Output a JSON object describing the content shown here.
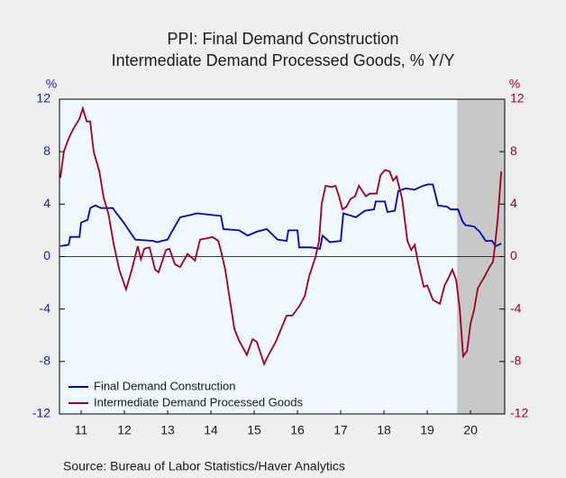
{
  "chart_data": {
    "type": "line",
    "title": "PPI: Final Demand Construction",
    "subtitle": "Intermediate Demand Processed Goods, % Y/Y",
    "ylabel": "%",
    "y2label": "%",
    "source": "Source:  Bureau of Labor Statistics/Haver Analytics",
    "xlim": [
      2011,
      2021.29
    ],
    "xticks": [
      {
        "value": 2011.5,
        "label": "11"
      },
      {
        "value": 2012.5,
        "label": "12"
      },
      {
        "value": 2013.5,
        "label": "13"
      },
      {
        "value": 2014.5,
        "label": "14"
      },
      {
        "value": 2015.5,
        "label": "15"
      },
      {
        "value": 2016.5,
        "label": "16"
      },
      {
        "value": 2017.5,
        "label": "17"
      },
      {
        "value": 2018.5,
        "label": "18"
      },
      {
        "value": 2019.5,
        "label": "19"
      },
      {
        "value": 2020.5,
        "label": "20"
      }
    ],
    "ylim": [
      -12,
      12
    ],
    "yticks": [
      12,
      8,
      4,
      0,
      -4,
      -8,
      -12
    ],
    "y2lim": [
      -12,
      12
    ],
    "y2ticks": [
      12,
      8,
      4,
      0,
      -4,
      -8,
      -12
    ],
    "hline": 0,
    "shaded_region": [
      2020.19,
      2021.29
    ],
    "legend": "lower left",
    "series": [
      {
        "name": "Final Demand Construction",
        "color": "#0000c0",
        "x": [
          2011.02,
          2011.21,
          2011.25,
          2011.46,
          2011.5,
          2011.65,
          2011.71,
          2011.83,
          2011.96,
          2012.23,
          2012.48,
          2012.75,
          2013.17,
          2013.25,
          2013.5,
          2013.58,
          2013.79,
          2014.06,
          2014.17,
          2014.46,
          2014.73,
          2014.79,
          2015.15,
          2015.35,
          2015.56,
          2015.79,
          2016.04,
          2016.25,
          2016.29,
          2016.5,
          2016.54,
          2016.81,
          2017.02,
          2017.08,
          2017.25,
          2017.5,
          2017.56,
          2017.85,
          2018.06,
          2018.27,
          2018.31,
          2018.52,
          2018.58,
          2018.75,
          2018.83,
          2019.0,
          2019.21,
          2019.33,
          2019.5,
          2019.63,
          2019.75,
          2019.96,
          2020.04,
          2020.21,
          2020.31,
          2020.38,
          2020.58,
          2020.71,
          2020.85,
          2021.0,
          2021.08,
          2021.15,
          2021.21
        ],
        "values": [
          0.8,
          0.9,
          1.5,
          1.5,
          2.6,
          2.8,
          3.7,
          3.9,
          3.7,
          3.7,
          2.6,
          1.3,
          1.2,
          1.1,
          1.3,
          1.8,
          3.0,
          3.2,
          3.3,
          3.2,
          3.1,
          2.1,
          2.0,
          1.6,
          1.9,
          2.1,
          1.3,
          1.2,
          2.0,
          2.0,
          0.7,
          0.7,
          0.6,
          1.6,
          1.1,
          1.2,
          3.3,
          3.0,
          3.5,
          3.6,
          4.2,
          4.2,
          3.4,
          3.5,
          5.0,
          5.2,
          5.1,
          5.3,
          5.5,
          5.5,
          3.9,
          3.8,
          3.6,
          3.6,
          2.7,
          2.4,
          2.3,
          1.9,
          1.2,
          1.2,
          0.8,
          0.9,
          1.0
        ]
      },
      {
        "name": "Intermediate Demand Processed Goods",
        "color": "#a00020",
        "axis": "y2",
        "x": [
          2011.02,
          2011.1,
          2011.21,
          2011.33,
          2011.46,
          2011.54,
          2011.63,
          2011.71,
          2011.79,
          2011.92,
          2012.02,
          2012.13,
          2012.25,
          2012.38,
          2012.54,
          2012.67,
          2012.81,
          2012.88,
          2012.96,
          2013.08,
          2013.21,
          2013.29,
          2013.46,
          2013.54,
          2013.67,
          2013.79,
          2013.96,
          2014.13,
          2014.25,
          2014.42,
          2014.54,
          2014.67,
          2014.75,
          2014.83,
          2015.04,
          2015.15,
          2015.25,
          2015.33,
          2015.46,
          2015.56,
          2015.73,
          2015.83,
          2016.0,
          2016.25,
          2016.38,
          2016.54,
          2016.67,
          2016.77,
          2016.92,
          2017.0,
          2017.06,
          2017.15,
          2017.29,
          2017.38,
          2017.46,
          2017.54,
          2017.63,
          2017.73,
          2017.83,
          2017.92,
          2018.08,
          2018.17,
          2018.33,
          2018.42,
          2018.52,
          2018.63,
          2018.71,
          2018.79,
          2018.92,
          2019.04,
          2019.13,
          2019.21,
          2019.29,
          2019.42,
          2019.5,
          2019.63,
          2019.79,
          2019.9,
          2019.98,
          2020.08,
          2020.17,
          2020.25,
          2020.33,
          2020.42,
          2020.5,
          2020.58,
          2020.67,
          2020.81,
          2020.94,
          2021.02,
          2021.06,
          2021.13,
          2021.21
        ],
        "values": [
          6.0,
          8.0,
          9.0,
          9.8,
          10.5,
          11.3,
          10.3,
          10.3,
          8.0,
          6.5,
          4.5,
          3.3,
          1.0,
          -1.0,
          -2.5,
          -1.0,
          0.8,
          -0.2,
          0.6,
          0.7,
          -1.0,
          -1.2,
          0.5,
          0.6,
          -0.6,
          -0.8,
          0.2,
          -0.3,
          1.3,
          1.4,
          1.5,
          1.2,
          0.2,
          -1.0,
          -5.5,
          -6.4,
          -7.0,
          -7.5,
          -6.3,
          -6.5,
          -8.2,
          -7.5,
          -6.5,
          -4.5,
          -4.5,
          -3.8,
          -3.0,
          -1.5,
          0.0,
          1.2,
          4.0,
          5.4,
          5.3,
          5.4,
          4.6,
          3.6,
          3.8,
          4.4,
          4.6,
          5.4,
          4.6,
          4.8,
          4.8,
          6.2,
          6.6,
          6.5,
          5.8,
          6.1,
          4.4,
          1.2,
          0.5,
          0.9,
          -0.5,
          -2.3,
          -2.2,
          -3.3,
          -3.6,
          -2.2,
          -1.7,
          -1.0,
          -1.8,
          -4.0,
          -7.6,
          -7.2,
          -5.1,
          -4.1,
          -2.4,
          -1.6,
          -0.8,
          -0.4,
          0.7,
          2.9,
          6.5
        ]
      }
    ]
  }
}
